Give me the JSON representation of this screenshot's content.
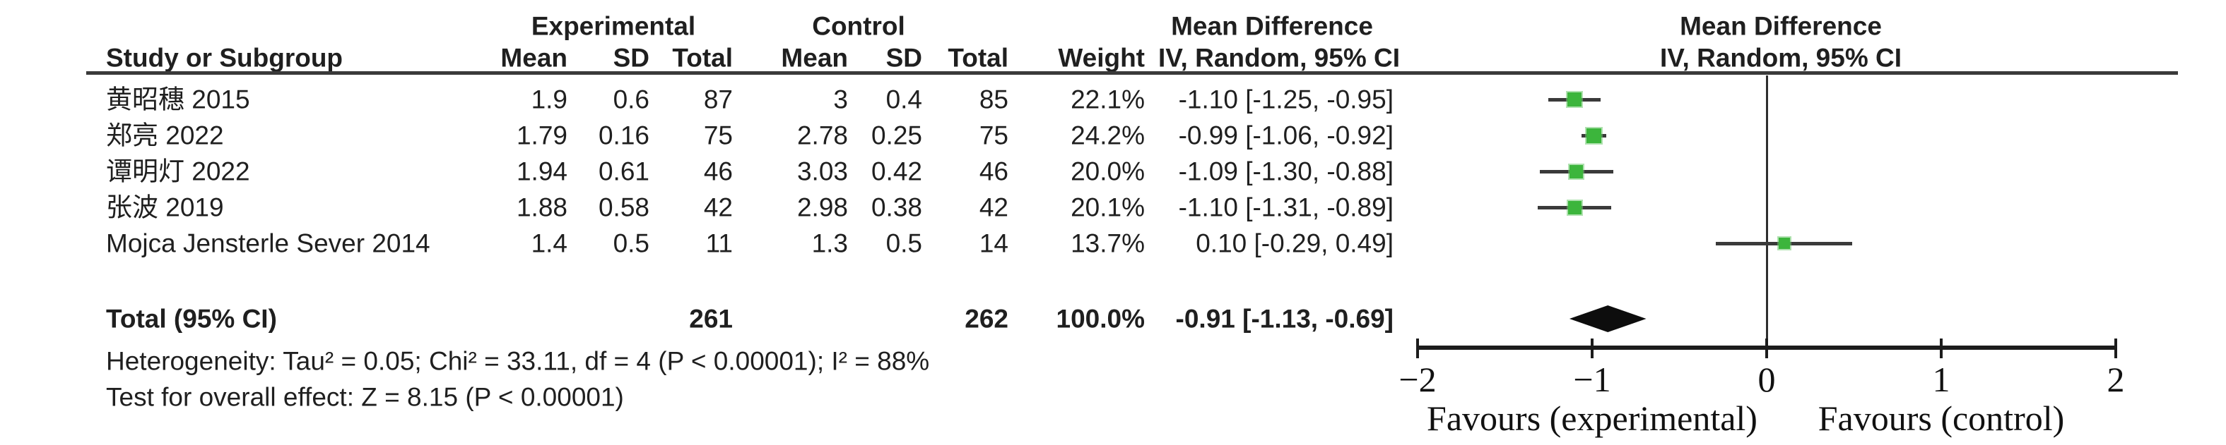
{
  "headers": {
    "experimental": "Experimental",
    "control": "Control",
    "mean_difference_text": "Mean Difference",
    "mean_difference_plot": "Mean Difference",
    "study_or_subgroup": "Study or Subgroup",
    "mean": "Mean",
    "sd": "SD",
    "total": "Total",
    "weight": "Weight",
    "iv_random_text": "IV, Random, 95% CI",
    "iv_random_plot": "IV, Random, 95% CI"
  },
  "studies": [
    {
      "name": "黄昭穗 2015",
      "exp_mean": "1.9",
      "exp_sd": "0.6",
      "exp_total": "87",
      "c_mean": "3",
      "c_sd": "0.4",
      "c_total": "85",
      "weight": "22.1%",
      "ci_text": "-1.10 [-1.25, -0.95]"
    },
    {
      "name": "郑亮 2022",
      "exp_mean": "1.79",
      "exp_sd": "0.16",
      "exp_total": "75",
      "c_mean": "2.78",
      "c_sd": "0.25",
      "c_total": "75",
      "weight": "24.2%",
      "ci_text": "-0.99 [-1.06, -0.92]"
    },
    {
      "name": "谭明灯 2022",
      "exp_mean": "1.94",
      "exp_sd": "0.61",
      "exp_total": "46",
      "c_mean": "3.03",
      "c_sd": "0.42",
      "c_total": "46",
      "weight": "20.0%",
      "ci_text": "-1.09 [-1.30, -0.88]"
    },
    {
      "name": "张波 2019",
      "exp_mean": "1.88",
      "exp_sd": "0.58",
      "exp_total": "42",
      "c_mean": "2.98",
      "c_sd": "0.38",
      "c_total": "42",
      "weight": "20.1%",
      "ci_text": "-1.10 [-1.31, -0.89]"
    },
    {
      "name": "Mojca Jensterle Sever 2014",
      "exp_mean": "1.4",
      "exp_sd": "0.5",
      "exp_total": "11",
      "c_mean": "1.3",
      "c_sd": "0.5",
      "c_total": "14",
      "weight": "13.7%",
      "ci_text": "0.10 [-0.29, 0.49]"
    }
  ],
  "total_row": {
    "label": "Total (95% CI)",
    "exp_total": "261",
    "c_total": "262",
    "weight": "100.0%",
    "ci_text": "-0.91 [-1.13, -0.69]"
  },
  "footnotes": {
    "heterogeneity": "Heterogeneity: Tau² = 0.05; Chi² = 33.11, df = 4 (P < 0.00001); I² = 88%",
    "overall_effect": "Test for overall effect: Z = 8.15 (P < 0.00001)"
  },
  "axis": {
    "tick_labels": [
      "−2",
      "−1",
      "0",
      "1",
      "2"
    ],
    "favours_left": "Favours (experimental)",
    "favours_right": "Favours (control)"
  },
  "chart_data": {
    "type": "forest",
    "effect_measure": "Mean Difference, IV, Random, 95% CI",
    "x_axis": {
      "min": -2,
      "max": 2,
      "ticks": [
        -2,
        -1,
        0,
        1,
        2
      ]
    },
    "studies": [
      {
        "name": "黄昭穗 2015",
        "md": -1.1,
        "ci": [
          -1.25,
          -0.95
        ],
        "weight_pct": 22.1
      },
      {
        "name": "郑亮 2022",
        "md": -0.99,
        "ci": [
          -1.06,
          -0.92
        ],
        "weight_pct": 24.2
      },
      {
        "name": "谭明灯 2022",
        "md": -1.09,
        "ci": [
          -1.3,
          -0.88
        ],
        "weight_pct": 20.0
      },
      {
        "name": "张波 2019",
        "md": -1.1,
        "ci": [
          -1.31,
          -0.89
        ],
        "weight_pct": 20.1
      },
      {
        "name": "Mojca Jensterle Sever 2014",
        "md": 0.1,
        "ci": [
          -0.29,
          0.49
        ],
        "weight_pct": 13.7
      }
    ],
    "total": {
      "md": -0.91,
      "ci": [
        -1.13,
        -0.69
      ]
    },
    "marker_color": "#3cb53c",
    "diamond_color": "#0d0d0d",
    "line_color": "#3a3a3a"
  }
}
